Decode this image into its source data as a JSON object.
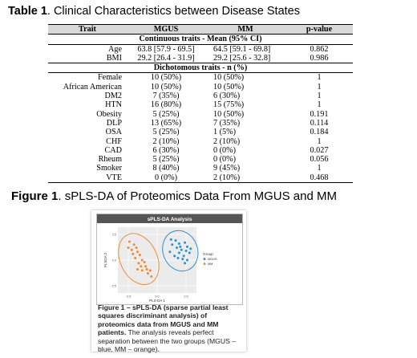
{
  "table_caption": {
    "label": "Table 1",
    "text": ".  Clinical Characteristics between Disease States"
  },
  "table": {
    "headers": [
      "Trait",
      "MGUS",
      "MM",
      "p-value"
    ],
    "continuous_title": "Continuous traits - Mean (95% CI)",
    "continuous_rows": [
      [
        "Age",
        "63.8 [57.9 - 69.5]",
        "64.5 [59.1 - 69.8]",
        "0.862"
      ],
      [
        "BMI",
        "29.2 [26.4 - 31.9]",
        "29.2 [25.6 - 32.8]",
        "0.986"
      ]
    ],
    "dichotomous_title": "Dichotomous traits - n (%)",
    "dichotomous_rows": [
      [
        "Female",
        "10 (50%)",
        "10 (50%)",
        "1"
      ],
      [
        "African American",
        "10 (50%)",
        "10 (50%)",
        "1"
      ],
      [
        "DM2",
        "7 (35%)",
        "6 (30%)",
        "1"
      ],
      [
        "HTN",
        "16 (80%)",
        "15 (75%)",
        "1"
      ],
      [
        "Obesity",
        "5 (25%)",
        "10 (50%)",
        "0.191"
      ],
      [
        "DLP",
        "13 (65%)",
        "7 (35%)",
        "0.114"
      ],
      [
        "OSA",
        "5 (25%)",
        "1 (5%)",
        "0.184"
      ],
      [
        "CHF",
        "2 (10%)",
        "2 (10%)",
        "1"
      ],
      [
        "CAD",
        "6 (30%)",
        "0 (0%)",
        "0.027"
      ],
      [
        "Rheum",
        "5 (25%)",
        "0 (0%)",
        "0.056"
      ],
      [
        "Smoker",
        "8 (40%)",
        "9 (45%)",
        "1"
      ],
      [
        "VTE",
        "0 (0%)",
        "2 (10%)",
        "0.468"
      ]
    ]
  },
  "figure_caption": {
    "label": "Figure 1",
    "text": ".  sPLS-DA of Proteomics Data From MGUS and MM"
  },
  "figure": {
    "plot_title": "sPLS-DA Analysis",
    "xlabel": "PLS-DA 1",
    "ylabel": "PLSDA 2",
    "legend_title": "Group",
    "legend": [
      {
        "name": "MGUS",
        "color": "#2b8fd6"
      },
      {
        "name": "MM",
        "color": "#f28a2e"
      }
    ],
    "description_bold": "Figure 1 – sPLS-DA (sparse partial least squares discriminant analysis) of proteomics data from MGUS and MM patients.",
    "description_rest": " The analysis reveals perfect separation between the two groups (MGUS – blue, MM – orange)."
  },
  "chart_data": {
    "type": "scatter",
    "title": "sPLS-DA Analysis",
    "xlabel": "PLS-DA 1",
    "ylabel": "PLSDA 2",
    "xlim": [
      -3.4,
      3.4
    ],
    "ylim": [
      -3.2,
      3.2
    ],
    "xticks": [
      "-2.5",
      "0.0",
      "2.5"
    ],
    "yticks": [
      "2.5",
      "0.0",
      "-2.5"
    ],
    "legend_position": "right",
    "grid": true,
    "series": [
      {
        "name": "MGUS",
        "color": "#2b8fd6",
        "points": [
          [
            1.2,
            2.0
          ],
          [
            1.6,
            1.9
          ],
          [
            1.9,
            1.6
          ],
          [
            2.4,
            1.7
          ],
          [
            2.6,
            1.3
          ],
          [
            1.7,
            1.2
          ],
          [
            2.1,
            1.0
          ],
          [
            2.5,
            0.9
          ],
          [
            1.9,
            0.7
          ],
          [
            2.3,
            0.4
          ],
          [
            2.8,
            0.7
          ],
          [
            1.5,
            0.4
          ],
          [
            2.2,
            0.1
          ],
          [
            2.6,
            0.0
          ],
          [
            1.3,
            1.5
          ],
          [
            2.0,
            1.3
          ],
          [
            2.9,
            1.1
          ],
          [
            1.8,
            0.2
          ],
          [
            2.4,
            -0.3
          ],
          [
            1.1,
            0.8
          ]
        ],
        "ellipse": {
          "cx": 2.0,
          "cy": 0.9,
          "rx": 1.5,
          "ry": 2.0,
          "angle": -20
        }
      },
      {
        "name": "MM",
        "color": "#f28a2e",
        "points": [
          [
            -2.4,
            1.8
          ],
          [
            -2.0,
            1.5
          ],
          [
            -2.2,
            1.0
          ],
          [
            -1.7,
            0.8
          ],
          [
            -1.5,
            0.5
          ],
          [
            -1.9,
            0.2
          ],
          [
            -1.3,
            0.0
          ],
          [
            -1.6,
            -0.3
          ],
          [
            -1.0,
            -0.6
          ],
          [
            -1.3,
            -1.0
          ],
          [
            -0.8,
            -1.3
          ],
          [
            -0.5,
            -1.6
          ],
          [
            -2.1,
            0.6
          ],
          [
            -1.1,
            -0.2
          ],
          [
            -0.9,
            -0.9
          ],
          [
            -2.5,
            1.2
          ],
          [
            -1.8,
            1.2
          ],
          [
            -1.4,
            -0.6
          ],
          [
            -0.6,
            -1.0
          ],
          [
            -1.7,
            -0.9
          ]
        ],
        "ellipse": {
          "cx": -1.6,
          "cy": 0.1,
          "rx": 1.6,
          "ry": 2.6,
          "angle": -25
        }
      }
    ]
  }
}
